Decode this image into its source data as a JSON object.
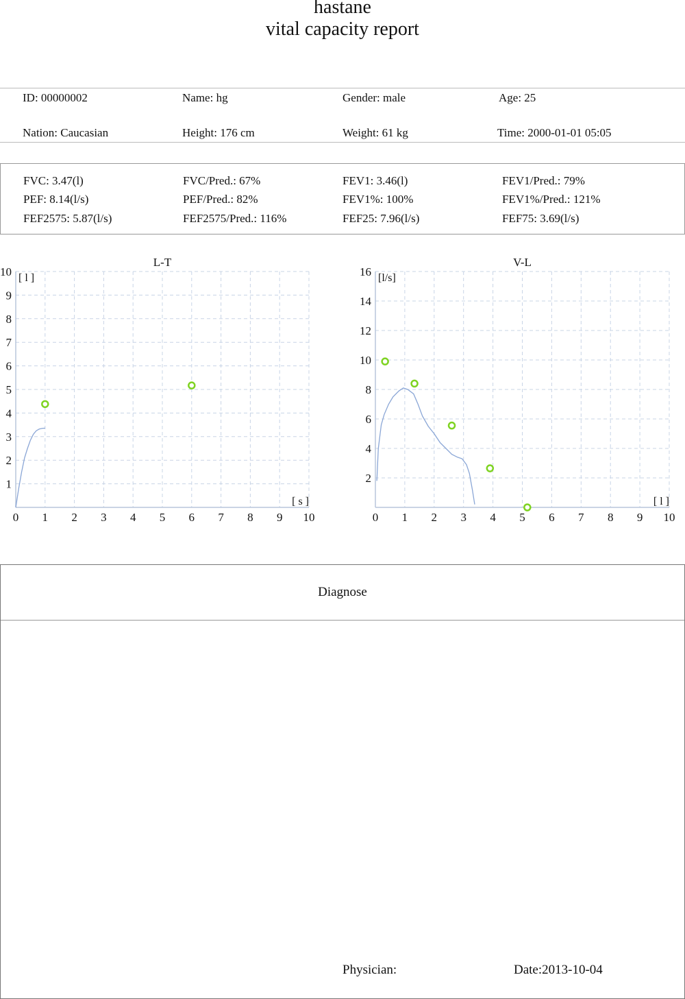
{
  "header": {
    "hospital": "hastane",
    "report_title": "vital capacity report"
  },
  "patient": {
    "id": "ID: 00000002",
    "name": "Name: hg",
    "gender": "Gender: male",
    "age": "Age: 25",
    "nation": "Nation: Caucasian",
    "height": "Height: 176 cm",
    "weight": "Weight: 61 kg",
    "time": "Time: 2000-01-01 05:05"
  },
  "results": [
    [
      "FVC: 3.47(l)",
      "FVC/Pred.: 67%",
      "FEV1: 3.46(l)",
      "FEV1/Pred.: 79%"
    ],
    [
      "PEF: 8.14(l/s)",
      "PEF/Pred.: 82%",
      "FEV1%: 100%",
      "FEV1%/Pred.: 121%"
    ],
    [
      "FEF2575: 5.87(l/s)",
      "FEF2575/Pred.: 116%",
      "FEF25: 7.96(l/s)",
      "FEF75: 3.69(l/s)"
    ]
  ],
  "chart_data": [
    {
      "type": "line",
      "title": "L-T",
      "xlabel": "[ s ]",
      "ylabel": "[ l ]",
      "xlim": [
        0,
        10
      ],
      "ylim": [
        0,
        10
      ],
      "x_ticks": [
        0,
        1,
        2,
        3,
        4,
        5,
        6,
        7,
        8,
        9,
        10
      ],
      "y_ticks": [
        1,
        2,
        3,
        4,
        5,
        6,
        7,
        8,
        9,
        10
      ],
      "curve": {
        "x": [
          0,
          0.1,
          0.2,
          0.3,
          0.4,
          0.5,
          0.6,
          0.7,
          0.8,
          0.9,
          1.0
        ],
        "y": [
          0,
          0.8,
          1.5,
          2.1,
          2.5,
          2.85,
          3.1,
          3.25,
          3.32,
          3.35,
          3.36
        ]
      },
      "predicted_points": {
        "x": [
          1.0,
          6.0
        ],
        "y": [
          4.38,
          5.17
        ]
      },
      "colors": {
        "curve": "#8aa6d6",
        "points": "#7ed321",
        "grid": "#c8d4e6"
      },
      "grid": true
    },
    {
      "type": "line",
      "title": "V-L",
      "xlabel": "[ l ]",
      "ylabel": "[l/s]",
      "xlim": [
        0,
        10
      ],
      "ylim": [
        0,
        16
      ],
      "x_ticks": [
        0,
        1,
        2,
        3,
        4,
        5,
        6,
        7,
        8,
        9,
        10
      ],
      "y_ticks": [
        2,
        4,
        6,
        8,
        10,
        12,
        14,
        16
      ],
      "curve": {
        "x": [
          0.05,
          0.1,
          0.2,
          0.3,
          0.45,
          0.6,
          0.8,
          0.95,
          1.1,
          1.3,
          1.45,
          1.6,
          1.8,
          2.0,
          2.2,
          2.4,
          2.6,
          2.8,
          2.95,
          3.1,
          3.2,
          3.3,
          3.38
        ],
        "y": [
          1.8,
          4.0,
          5.6,
          6.3,
          7.0,
          7.5,
          7.9,
          8.1,
          8.0,
          7.7,
          7.0,
          6.2,
          5.5,
          5.0,
          4.4,
          4.0,
          3.6,
          3.4,
          3.3,
          2.9,
          2.3,
          1.2,
          0.2
        ]
      },
      "predicted_points": {
        "x": [
          0.33,
          1.33,
          2.6,
          3.9,
          5.17
        ],
        "y": [
          9.9,
          8.4,
          5.55,
          2.65,
          0
        ]
      },
      "colors": {
        "curve": "#8aa6d6",
        "points": "#7ed321",
        "grid": "#c8d4e6"
      },
      "grid": true
    }
  ],
  "diagnose": {
    "heading": "Diagnose",
    "physician_label": "Physician:",
    "date": "Date:2013-10-04"
  }
}
